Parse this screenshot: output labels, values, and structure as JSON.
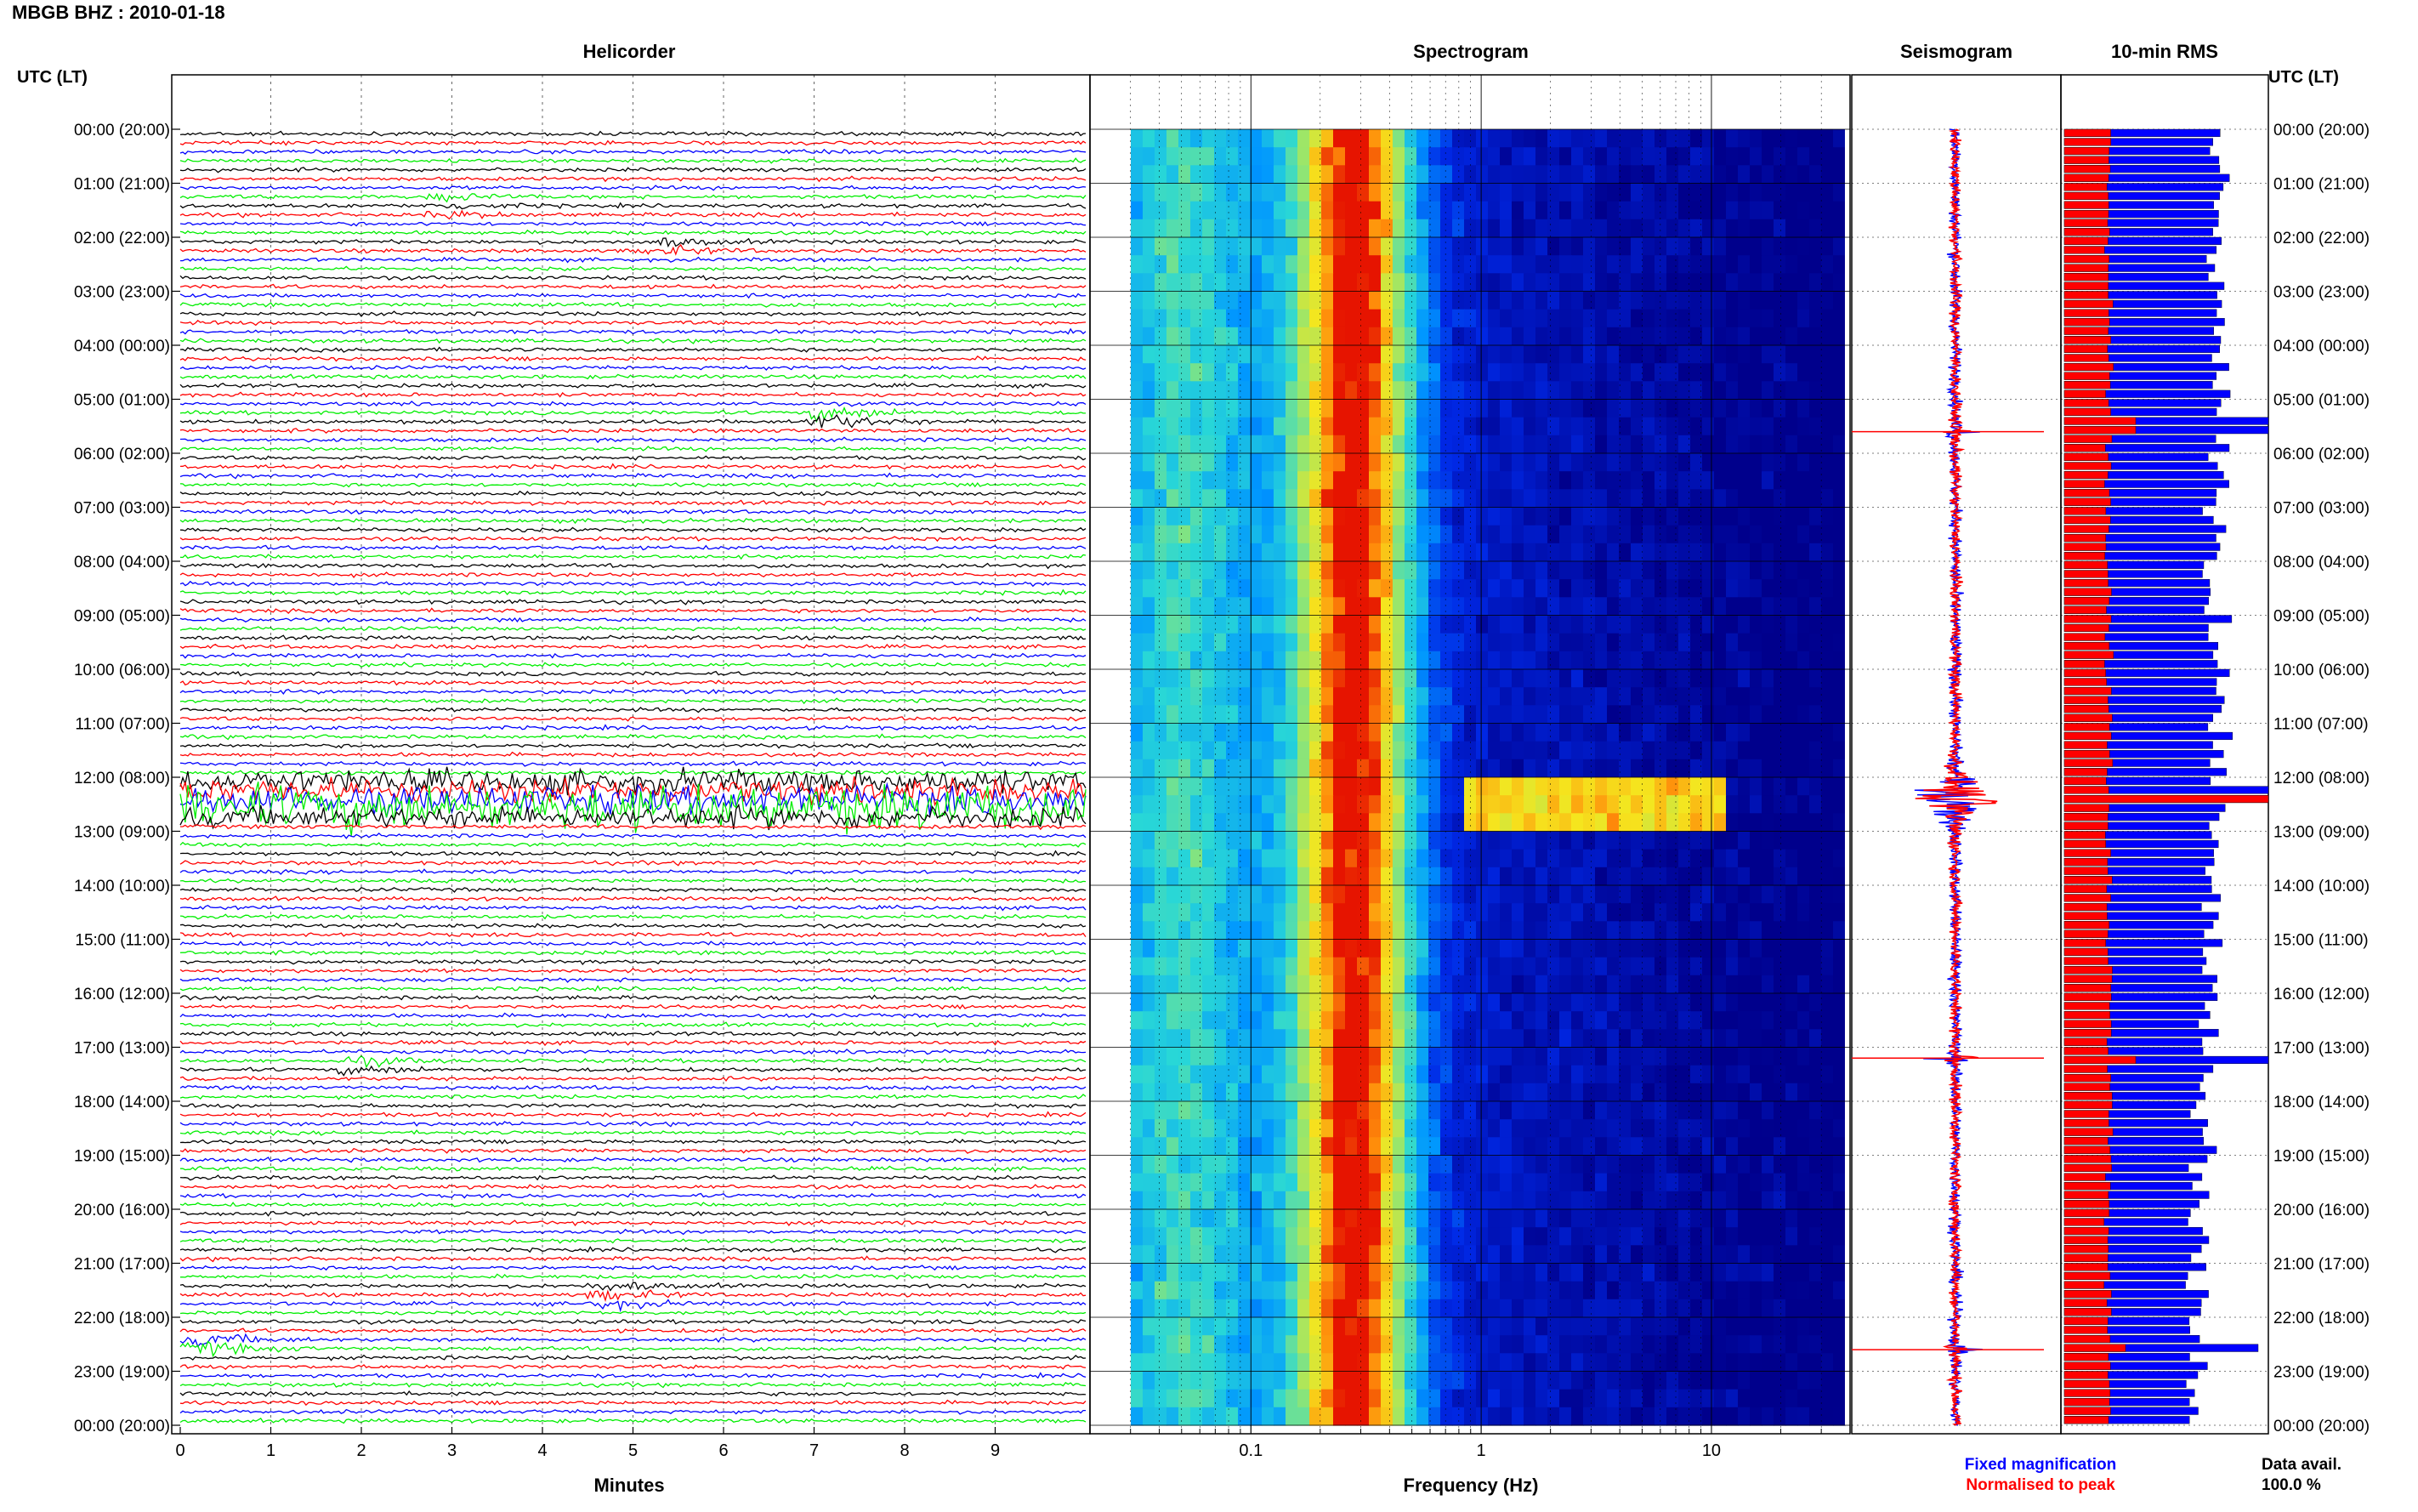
{
  "header": {
    "station": "MBGB BHZ : 2010-01-18"
  },
  "tz_label": "UTC (LT)",
  "hour_labels": [
    "00:00 (20:00)",
    "01:00 (21:00)",
    "02:00 (22:00)",
    "03:00 (23:00)",
    "04:00 (00:00)",
    "05:00 (01:00)",
    "06:00 (02:00)",
    "07:00 (03:00)",
    "08:00 (04:00)",
    "09:00 (05:00)",
    "10:00 (06:00)",
    "11:00 (07:00)",
    "12:00 (08:00)",
    "13:00 (09:00)",
    "14:00 (10:00)",
    "15:00 (11:00)",
    "16:00 (12:00)",
    "17:00 (13:00)",
    "18:00 (14:00)",
    "19:00 (15:00)",
    "20:00 (16:00)",
    "21:00 (17:00)",
    "22:00 (18:00)",
    "23:00 (19:00)",
    "00:00 (20:00)"
  ],
  "legend": {
    "fixed": "Fixed magnification",
    "normalised": "Normalised to peak",
    "data_avail": "Data avail.",
    "data_avail_value": "100.0 %"
  },
  "colors": {
    "trace_cycle": [
      "#000000",
      "#ff0000",
      "#0000ff",
      "#00ee00"
    ],
    "fixed": "#0000ff",
    "normalised": "#ff0000"
  },
  "chart_data": [
    {
      "type": "line",
      "title": "Helicorder",
      "xlabel": "Minutes",
      "x_ticks": [
        "0",
        "1",
        "2",
        "3",
        "4",
        "5",
        "6",
        "7",
        "8",
        "9"
      ],
      "xlim": [
        0,
        10
      ],
      "lines_per_hour": 6,
      "events": [
        {
          "hour": 1.33,
          "minute": 3.0,
          "amp": 0.6
        },
        {
          "hour": 2.1,
          "minute": 5.4,
          "amp": 0.7
        },
        {
          "hour": 5.3,
          "minute": 7.2,
          "amp": 1.4
        },
        {
          "hour": 12.1,
          "minute": 0,
          "span": 10,
          "amp": 1.8
        },
        {
          "hour": 12.35,
          "minute": 0,
          "span": 10,
          "amp": 2.2
        },
        {
          "hour": 12.55,
          "minute": 0,
          "span": 10,
          "amp": 1.6
        },
        {
          "hour": 17.2,
          "minute": 2.0,
          "amp": 0.8
        },
        {
          "hour": 21.5,
          "minute": 4.8,
          "amp": 0.8
        },
        {
          "hour": 22.35,
          "minute": 0.3,
          "amp": 1.2
        }
      ]
    },
    {
      "type": "heatmap",
      "title": "Spectrogram",
      "xlabel": "Frequency (Hz)",
      "x_scale": "log",
      "xlim": [
        0.02,
        40
      ],
      "x_ticks": [
        0.1,
        1,
        10
      ],
      "x_tick_labels": [
        "0.1",
        "1",
        "10"
      ],
      "band_peak_hz": 0.28,
      "event_band": {
        "hour": 12.5,
        "f_min": 1.0,
        "f_max": 10.0
      }
    },
    {
      "type": "line",
      "title": "Seismogram",
      "series": [
        {
          "name": "Fixed magnification",
          "color": "#0000ff"
        },
        {
          "name": "Normalised to peak",
          "color": "#ff0000"
        }
      ],
      "spikes_hour": [
        5.6,
        12.4,
        17.2,
        22.6
      ]
    },
    {
      "type": "bar",
      "title": "10-min RMS",
      "interval_min": 10,
      "series": [
        {
          "name": "Fixed magnification",
          "color": "#0000ff",
          "base": 0.75,
          "peaks": [
            {
              "hour": 5.5,
              "value": 1.0
            },
            {
              "hour": 12.2,
              "value": 1.0
            },
            {
              "hour": 12.4,
              "value": 1.0
            },
            {
              "hour": 17.2,
              "value": 1.0
            },
            {
              "hour": 22.6,
              "value": 0.95
            }
          ]
        },
        {
          "name": "Normalised to peak",
          "color": "#ff0000",
          "base": 0.22,
          "peaks": [
            {
              "hour": 5.5,
              "value": 0.35
            },
            {
              "hour": 12.4,
              "value": 1.0
            },
            {
              "hour": 17.2,
              "value": 0.35
            },
            {
              "hour": 22.6,
              "value": 0.3
            }
          ]
        }
      ]
    }
  ]
}
